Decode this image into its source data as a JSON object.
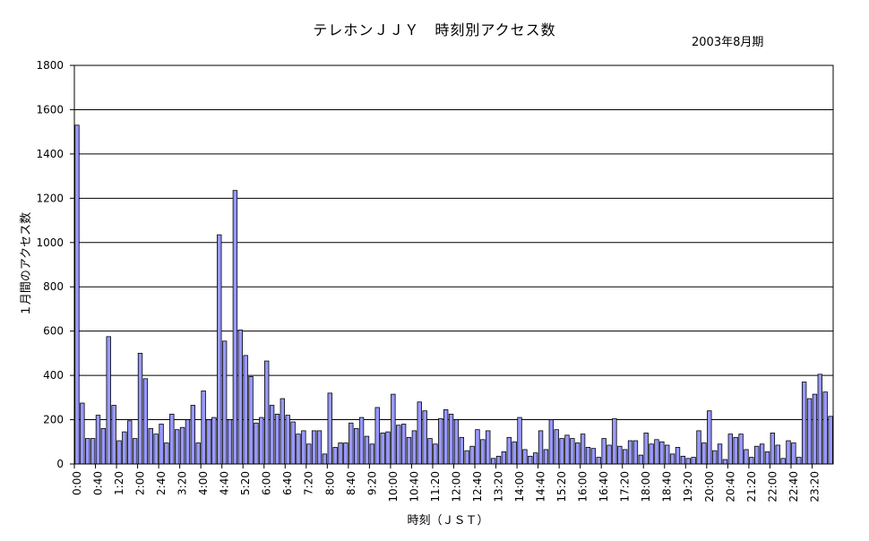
{
  "chart_data": {
    "type": "bar",
    "title": "テレホンＪＪＹ　時刻別アクセス数",
    "subtitle": "2003年8月期",
    "xlabel": "時刻（ＪＳＴ）",
    "ylabel": "１月間のアクセス数",
    "ylim": [
      0,
      1800
    ],
    "yticks": [
      0,
      200,
      400,
      600,
      800,
      1000,
      1200,
      1400,
      1600,
      1800
    ],
    "grid": true,
    "legend": "none",
    "bar_color": "#9999ff",
    "x_tick_labels": [
      "0:00",
      "0:40",
      "1:20",
      "2:00",
      "2:40",
      "3:20",
      "4:00",
      "4:40",
      "5:20",
      "6:00",
      "6:40",
      "7:20",
      "8:00",
      "8:40",
      "9:20",
      "10:00",
      "10:40",
      "11:20",
      "12:00",
      "12:40",
      "13:20",
      "14:00",
      "14:40",
      "15:20",
      "16:00",
      "16:40",
      "17:20",
      "18:00",
      "18:40",
      "19:20",
      "20:00",
      "20:40",
      "21:20",
      "22:00",
      "22:40",
      "23:20"
    ],
    "x_tick_label_every": 4,
    "categories": [
      "0:00",
      "0:10",
      "0:20",
      "0:30",
      "0:40",
      "0:50",
      "1:00",
      "1:10",
      "1:20",
      "1:30",
      "1:40",
      "1:50",
      "2:00",
      "2:10",
      "2:20",
      "2:30",
      "2:40",
      "2:50",
      "3:00",
      "3:10",
      "3:20",
      "3:30",
      "3:40",
      "3:50",
      "4:00",
      "4:10",
      "4:20",
      "4:30",
      "4:40",
      "4:50",
      "5:00",
      "5:10",
      "5:20",
      "5:30",
      "5:40",
      "5:50",
      "6:00",
      "6:10",
      "6:20",
      "6:30",
      "6:40",
      "6:50",
      "7:00",
      "7:10",
      "7:20",
      "7:30",
      "7:40",
      "7:50",
      "8:00",
      "8:10",
      "8:20",
      "8:30",
      "8:40",
      "8:50",
      "9:00",
      "9:10",
      "9:20",
      "9:30",
      "9:40",
      "9:50",
      "10:00",
      "10:10",
      "10:20",
      "10:30",
      "10:40",
      "10:50",
      "11:00",
      "11:10",
      "11:20",
      "11:30",
      "11:40",
      "11:50",
      "12:00",
      "12:10",
      "12:20",
      "12:30",
      "12:40",
      "12:50",
      "13:00",
      "13:10",
      "13:20",
      "13:30",
      "13:40",
      "13:50",
      "14:00",
      "14:10",
      "14:20",
      "14:30",
      "14:40",
      "14:50",
      "15:00",
      "15:10",
      "15:20",
      "15:30",
      "15:40",
      "15:50",
      "16:00",
      "16:10",
      "16:20",
      "16:30",
      "16:40",
      "16:50",
      "17:00",
      "17:10",
      "17:20",
      "17:30",
      "17:40",
      "17:50",
      "18:00",
      "18:10",
      "18:20",
      "18:30",
      "18:40",
      "18:50",
      "19:00",
      "19:10",
      "19:20",
      "19:30",
      "19:40",
      "19:50",
      "20:00",
      "20:10",
      "20:20",
      "20:30",
      "20:40",
      "20:50",
      "21:00",
      "21:10",
      "21:20",
      "21:30",
      "21:40",
      "21:50",
      "22:00",
      "22:10",
      "22:20",
      "22:30",
      "22:40",
      "22:50",
      "23:00",
      "23:10",
      "23:20",
      "23:30",
      "23:40",
      "23:50"
    ],
    "values": [
      1530,
      275,
      115,
      115,
      220,
      160,
      575,
      265,
      105,
      145,
      195,
      115,
      500,
      385,
      160,
      135,
      180,
      95,
      225,
      155,
      165,
      200,
      265,
      95,
      330,
      200,
      210,
      1035,
      555,
      200,
      1235,
      605,
      490,
      395,
      185,
      210,
      465,
      265,
      225,
      295,
      220,
      190,
      135,
      150,
      90,
      150,
      150,
      45,
      320,
      75,
      95,
      95,
      185,
      160,
      210,
      125,
      90,
      255,
      140,
      145,
      315,
      175,
      180,
      120,
      150,
      280,
      240,
      115,
      90,
      205,
      245,
      225,
      200,
      120,
      60,
      80,
      155,
      110,
      150,
      25,
      35,
      55,
      120,
      100,
      210,
      65,
      35,
      50,
      150,
      65,
      200,
      155,
      115,
      130,
      115,
      95,
      135,
      75,
      70,
      30,
      115,
      85,
      205,
      80,
      65,
      105,
      105,
      40,
      140,
      90,
      110,
      100,
      85,
      45,
      75,
      35,
      25,
      30,
      150,
      95,
      240,
      60,
      90,
      20,
      135,
      120,
      135,
      65,
      30,
      80,
      90,
      55,
      140,
      85,
      25,
      105,
      95,
      30,
      370,
      295,
      315,
      405,
      325,
      215
    ]
  }
}
